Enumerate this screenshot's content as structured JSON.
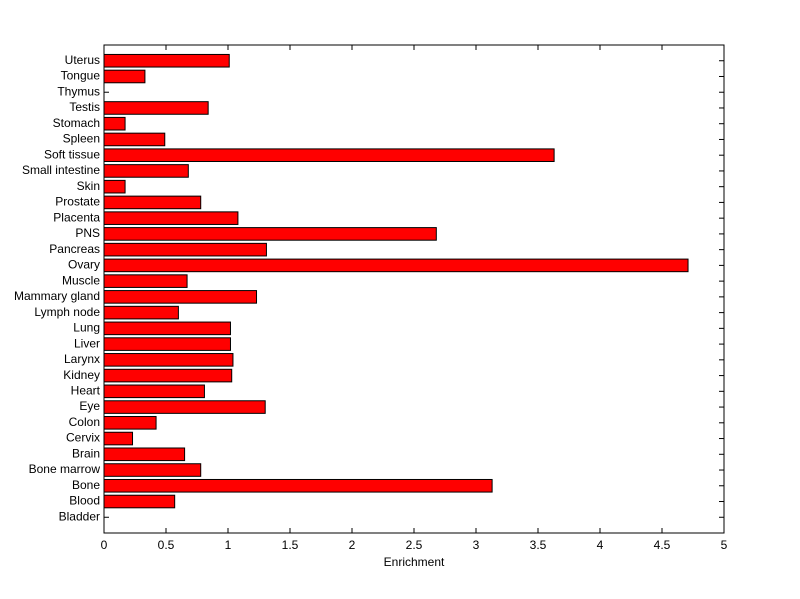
{
  "chart_data": {
    "type": "bar",
    "orientation": "horizontal",
    "xlabel": "Enrichment",
    "categories": [
      "Bladder",
      "Blood",
      "Bone",
      "Bone marrow",
      "Brain",
      "Cervix",
      "Colon",
      "Eye",
      "Heart",
      "Kidney",
      "Larynx",
      "Liver",
      "Lung",
      "Lymph node",
      "Mammary gland",
      "Muscle",
      "Ovary",
      "Pancreas",
      "PNS",
      "Placenta",
      "Prostate",
      "Skin",
      "Small intestine",
      "Soft tissue",
      "Spleen",
      "Stomach",
      "Testis",
      "Thymus",
      "Tongue",
      "Uterus"
    ],
    "values": [
      0,
      0.57,
      3.13,
      0.78,
      0.65,
      0.23,
      0.42,
      1.3,
      0.81,
      1.03,
      1.04,
      1.02,
      1.02,
      0.6,
      1.23,
      0.67,
      4.71,
      1.31,
      2.68,
      1.08,
      0.78,
      0.17,
      0.68,
      3.63,
      0.49,
      0.17,
      0.84,
      0,
      0.33,
      1.01
    ],
    "color": "#ff0000",
    "xlim": [
      0,
      5
    ],
    "xticks": [
      0,
      0.5,
      1,
      1.5,
      2,
      2.5,
      3,
      3.5,
      4,
      4.5,
      5
    ]
  }
}
